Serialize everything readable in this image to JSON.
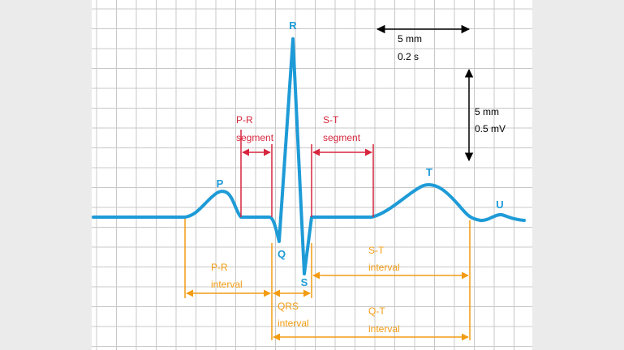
{
  "colors": {
    "background": "#ebebeb",
    "paper": "#ffffff",
    "grid": "#c8c8c8",
    "wave": "#1e9bd7",
    "segment": "#d7263d",
    "interval": "#f39c12",
    "scale": "#000000"
  },
  "waves": {
    "p": "P",
    "q": "Q",
    "r": "R",
    "s": "S",
    "t": "T",
    "u": "U"
  },
  "segments": {
    "pr": {
      "line1": "P-R",
      "line2": "segment"
    },
    "st": {
      "line1": "S-T",
      "line2": "segment"
    }
  },
  "intervals": {
    "pr": {
      "line1": "P-R",
      "line2": "interval"
    },
    "qrs": {
      "line1": "QRS",
      "line2": "interval"
    },
    "st": {
      "line1": "S-T",
      "line2": "interval"
    },
    "qt": {
      "line1": "Q-T",
      "line2": "interval"
    }
  },
  "scale": {
    "horizontal": {
      "line1": "5 mm",
      "line2": "0.2 s"
    },
    "vertical": {
      "line1": "5 mm",
      "line2": "0.5 mV"
    }
  }
}
